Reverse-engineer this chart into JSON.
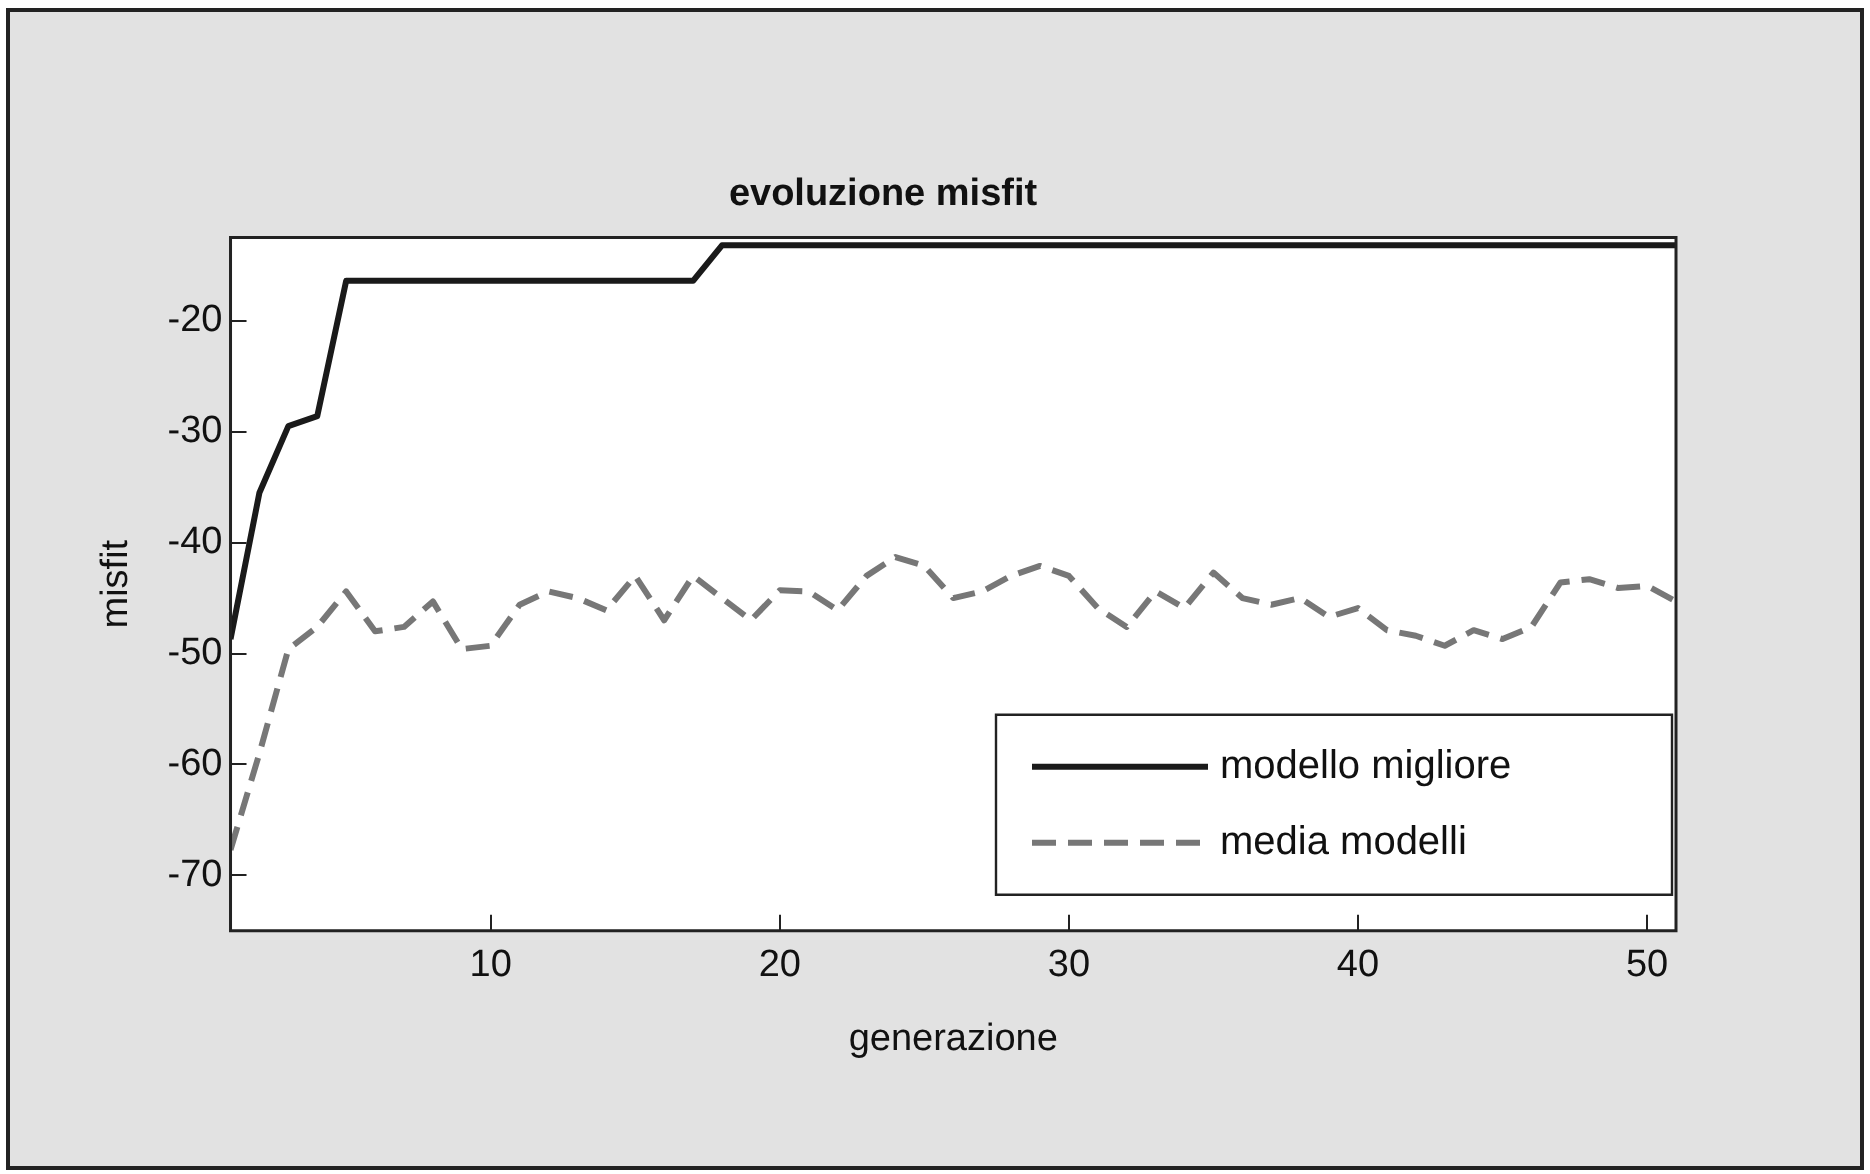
{
  "chart_data": {
    "type": "line",
    "title": "evoluzione misfit",
    "xlabel": "generazione",
    "ylabel": "misfit",
    "x": [
      1,
      2,
      3,
      4,
      5,
      6,
      7,
      8,
      9,
      10,
      11,
      12,
      13,
      14,
      15,
      16,
      17,
      18,
      19,
      20,
      21,
      22,
      23,
      24,
      25,
      26,
      27,
      28,
      29,
      30,
      31,
      32,
      33,
      34,
      35,
      36,
      37,
      38,
      39,
      40,
      41,
      42,
      43,
      44,
      45,
      46,
      47,
      48,
      49,
      50,
      51
    ],
    "xlim": [
      1,
      51
    ],
    "xticks": [
      10,
      20,
      30,
      40,
      50
    ],
    "ylim": [
      -75,
      -12.5
    ],
    "yticks": [
      -70,
      -60,
      -50,
      -40,
      -30,
      -20
    ],
    "legend": "bottom right",
    "marker": "none",
    "series": [
      {
        "name": "modello migliore",
        "color": "#1a1a1a",
        "line_style": "solid",
        "values": [
          -48.7,
          -35.5,
          -29.5,
          -28.6,
          -16.4,
          -16.4,
          -16.4,
          -16.4,
          -16.4,
          -16.4,
          -16.4,
          -16.4,
          -16.4,
          -16.4,
          -16.4,
          -16.4,
          -16.4,
          -13.2,
          -13.2,
          -13.2,
          -13.2,
          -13.2,
          -13.2,
          -13.2,
          -13.2,
          -13.2,
          -13.2,
          -13.2,
          -13.2,
          -13.2,
          -13.2,
          -13.2,
          -13.2,
          -13.2,
          -13.2,
          -13.2,
          -13.2,
          -13.2,
          -13.2,
          -13.2,
          -13.2,
          -13.2,
          -13.2,
          -13.2,
          -13.2,
          -13.2,
          -13.2,
          -13.2,
          -13.2,
          -13.2,
          -13.2
        ]
      },
      {
        "name": "media modelli",
        "color": "#777777",
        "line_style": "dashed",
        "values": [
          -67.7,
          -59,
          -49.6,
          -47.6,
          -44.4,
          -48,
          -47.6,
          -45.3,
          -49.6,
          -49.3,
          -45.6,
          -44.4,
          -45,
          -46.1,
          -43,
          -47,
          -43,
          -45,
          -47,
          -44.3,
          -44.4,
          -46.1,
          -43,
          -41.3,
          -42.1,
          -45,
          -44.4,
          -43,
          -42.1,
          -43,
          -45.9,
          -47.6,
          -44.4,
          -45.9,
          -42.7,
          -45,
          -45.6,
          -45,
          -46.7,
          -45.9,
          -47.9,
          -48.4,
          -49.3,
          -47.9,
          -48.7,
          -47.6,
          -43.6,
          -43.3,
          -44.1,
          -43.9,
          -45.3
        ]
      }
    ]
  }
}
